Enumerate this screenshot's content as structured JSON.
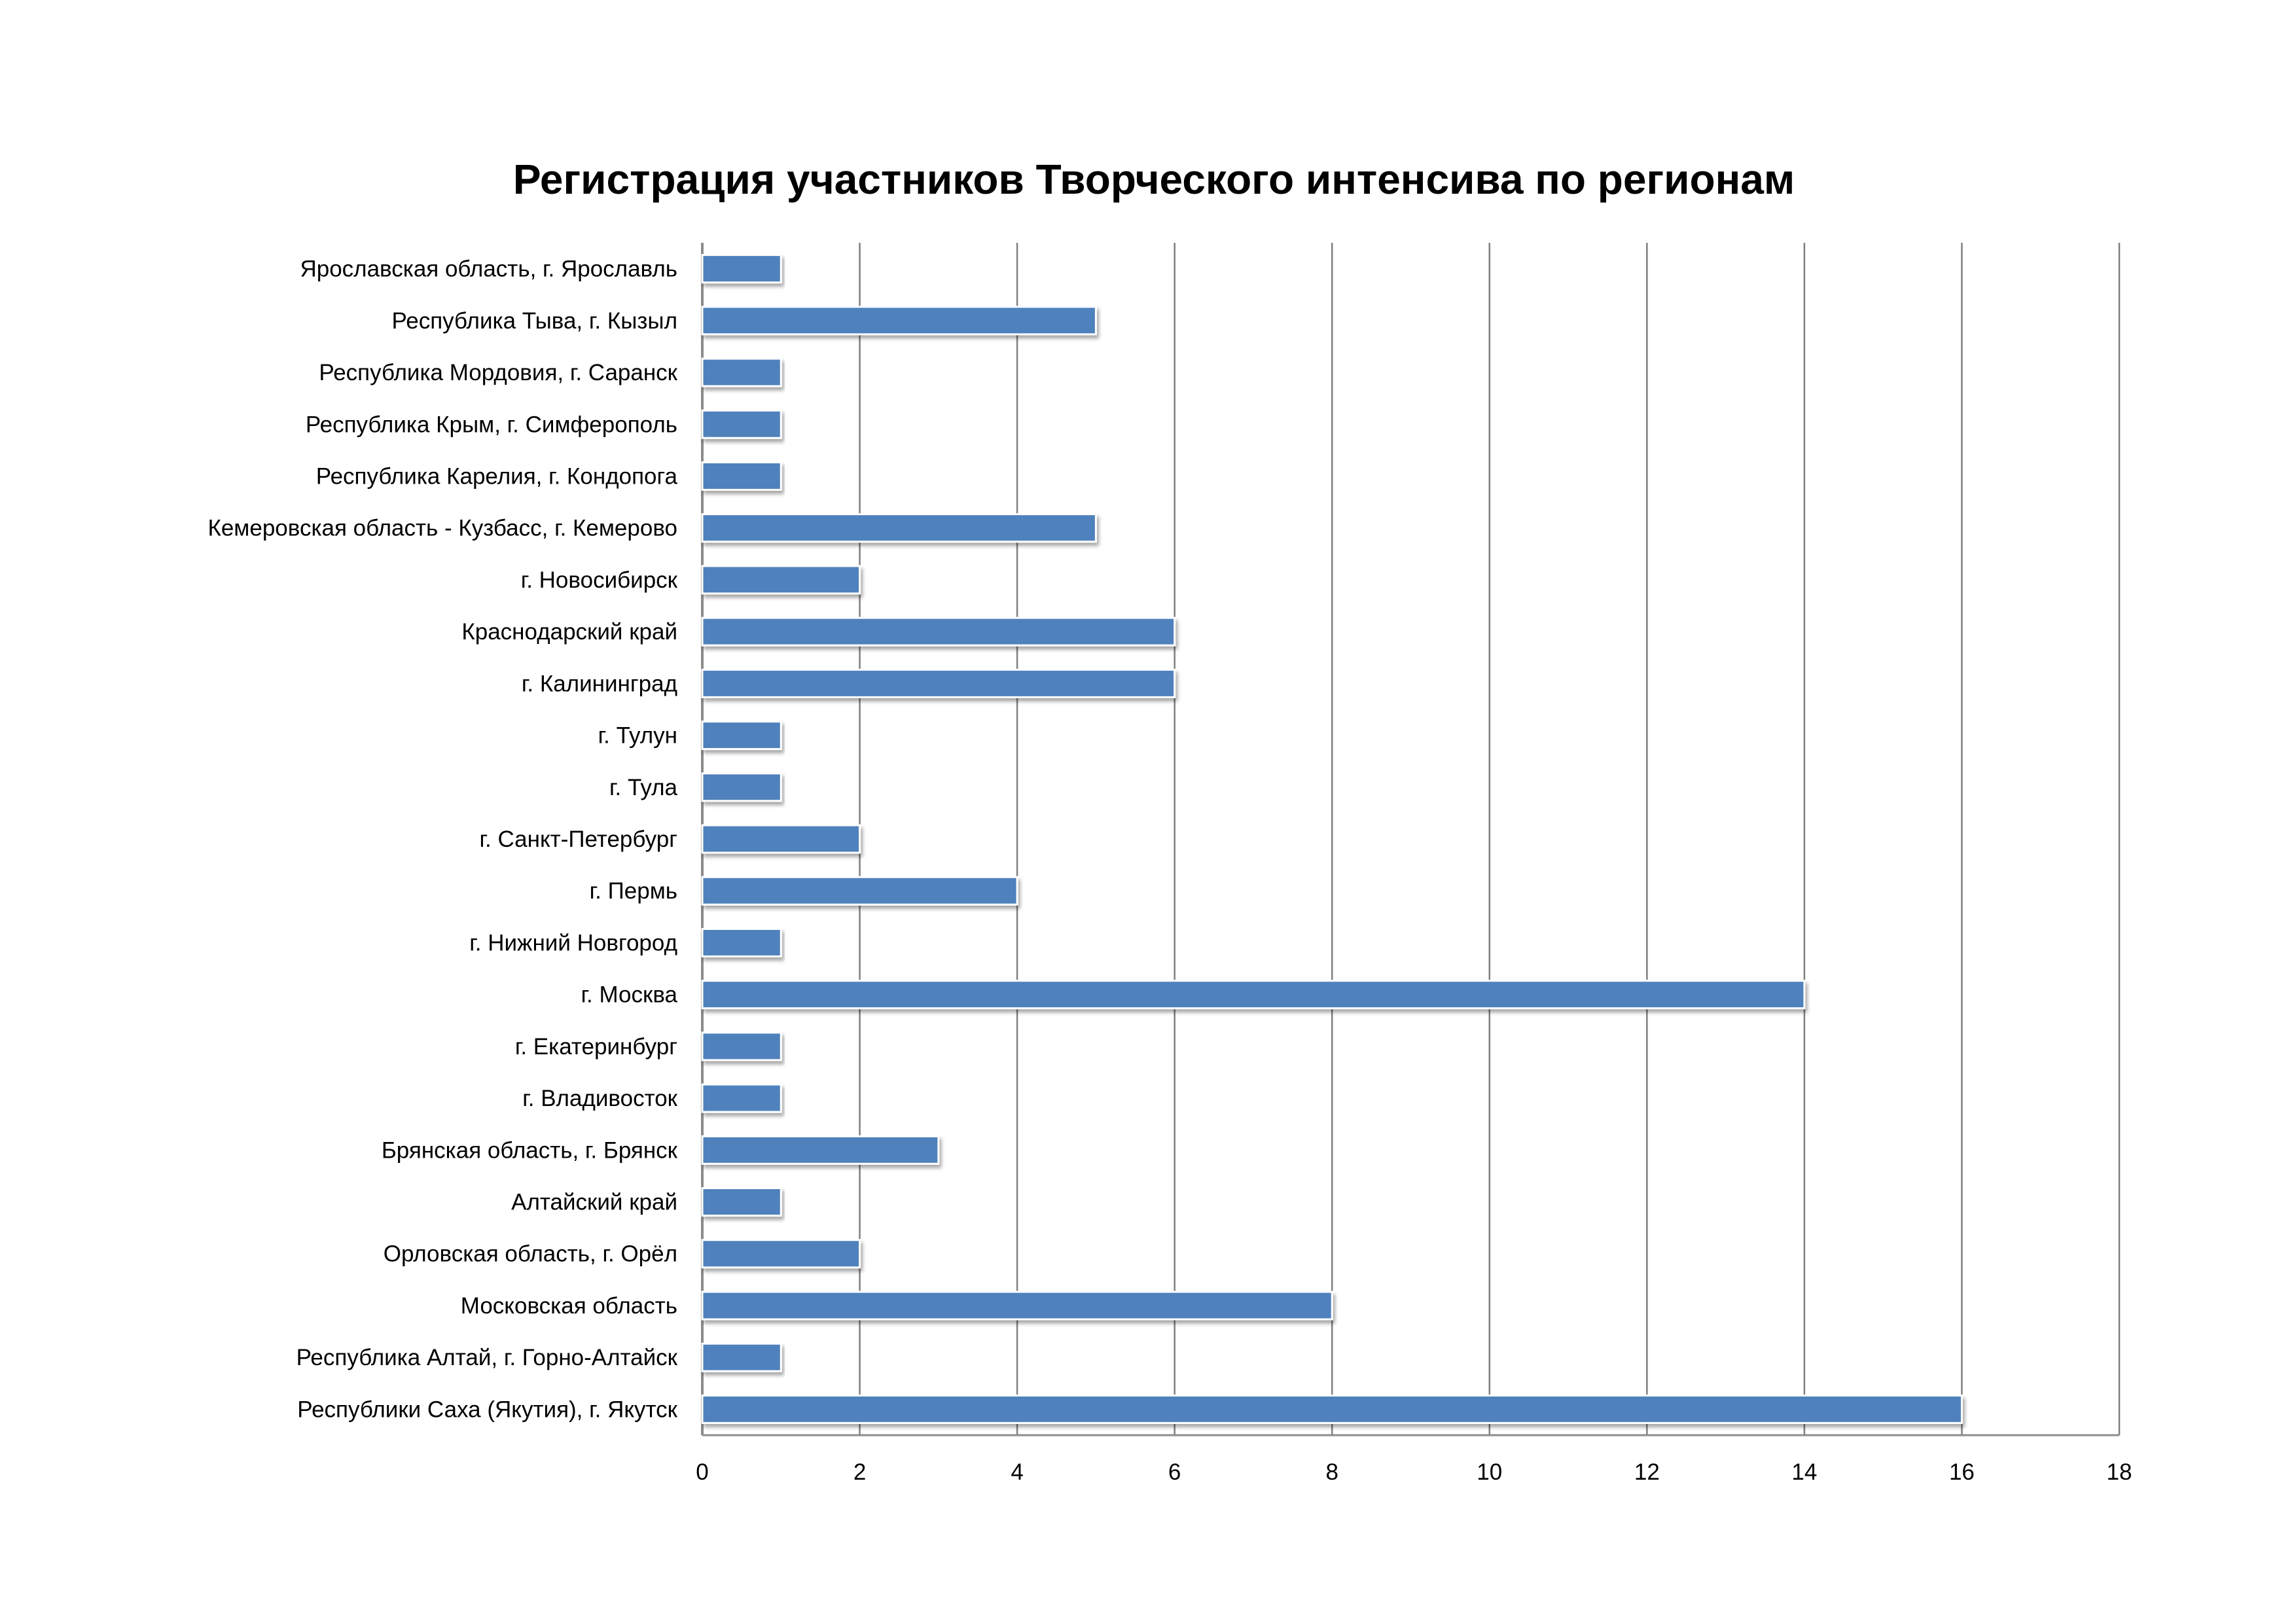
{
  "chart_data": {
    "type": "bar",
    "orientation": "horizontal",
    "title": "Регистрация участников Творческого интенсива по регионам",
    "xlabel": "",
    "ylabel": "",
    "xlim": [
      0,
      18
    ],
    "x_ticks": [
      "0",
      "2",
      "4",
      "6",
      "8",
      "10",
      "12",
      "14",
      "16",
      "18"
    ],
    "grid": true,
    "legend": "none",
    "bar_color": "#4F81BD",
    "categories": [
      "Ярославская область, г. Ярославль",
      "Республика Тыва, г. Кызыл",
      "Республика Мордовия, г. Саранск",
      "Республика Крым, г. Симферополь",
      "Республика Карелия, г. Кондопога",
      "Кемеровская область - Кузбасс, г. Кемерово",
      "г. Новосибирск",
      "Краснодарский край",
      "г. Калининград",
      "г. Тулун",
      "г. Тула",
      "г. Санкт-Петербург",
      "г. Пермь",
      "г. Нижний Новгород",
      "г. Москва",
      "г. Екатеринбург",
      "г. Владивосток",
      "Брянская область, г. Брянск",
      "Алтайский край",
      "Орловская область, г. Орёл",
      "Московская область",
      "Республика Алтай, г. Горно-Алтайск",
      "Республики Саха (Якутия), г. Якутск"
    ],
    "values": [
      1,
      5,
      1,
      1,
      1,
      5,
      2,
      6,
      6,
      1,
      1,
      2,
      4,
      1,
      14,
      1,
      1,
      3,
      1,
      2,
      8,
      1,
      16
    ]
  }
}
